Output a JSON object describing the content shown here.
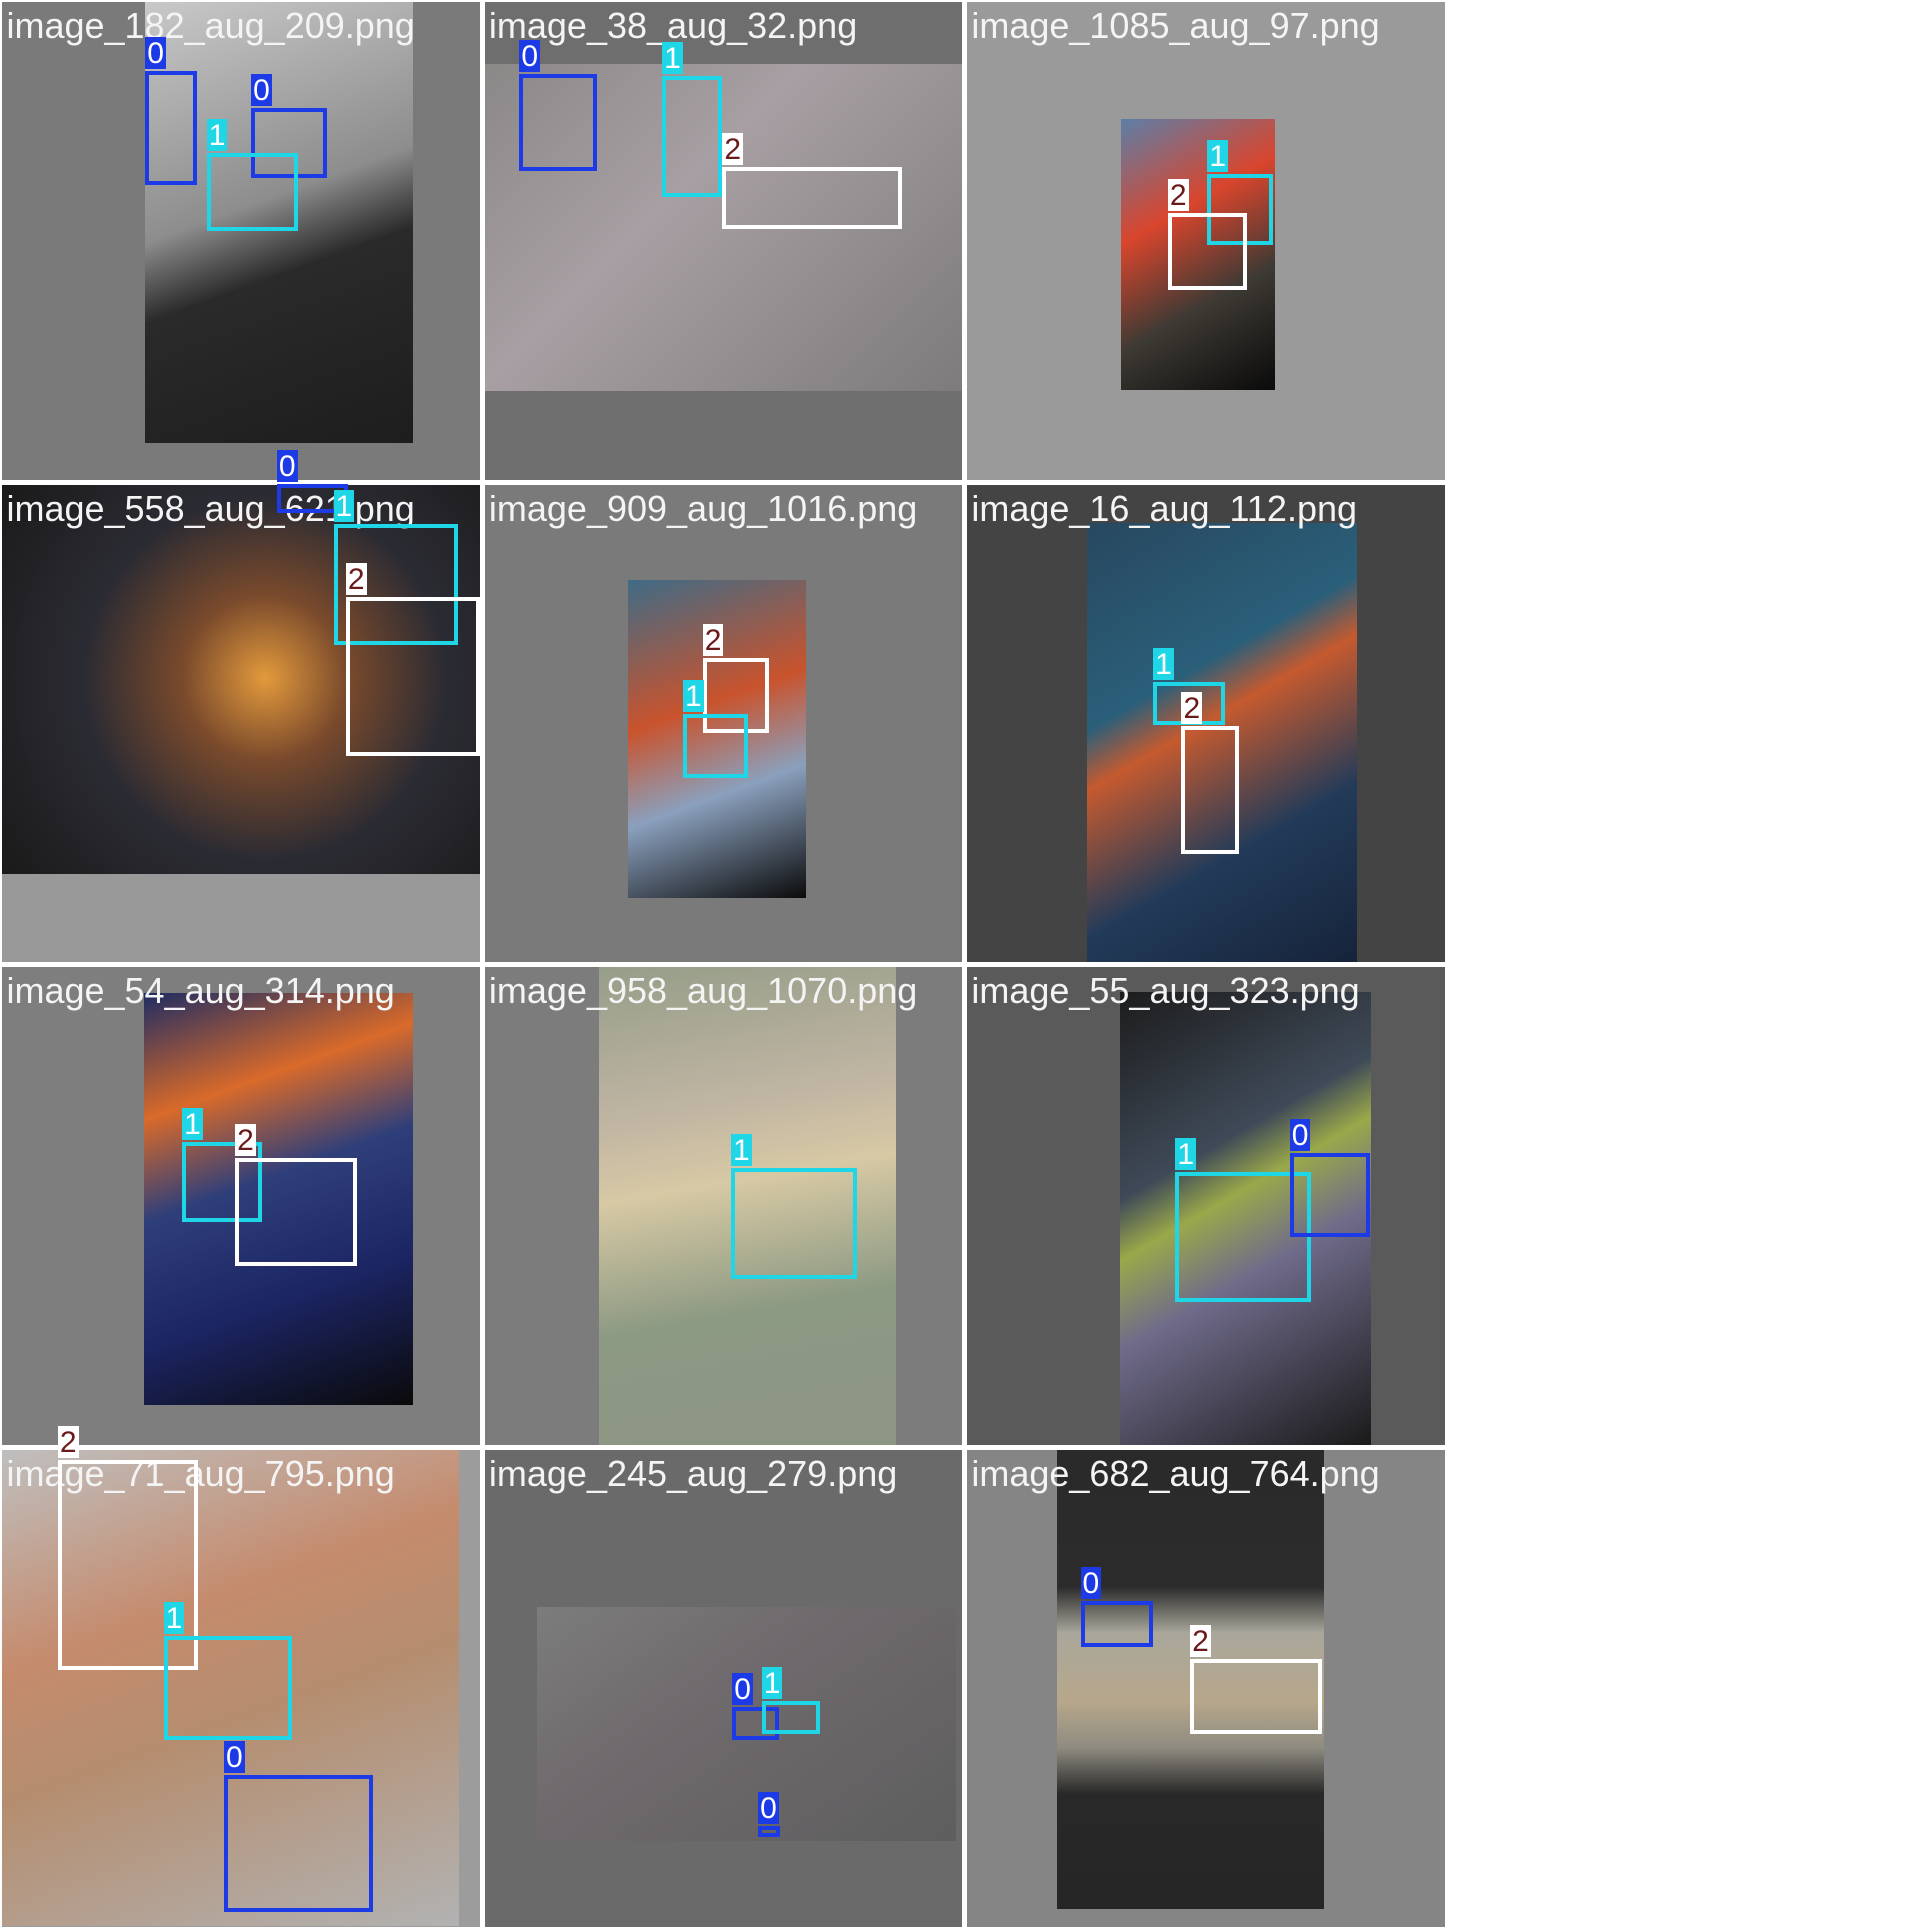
{
  "class_colors": {
    "0": "#1c3ae6",
    "1": "#1fd6e6",
    "2": "#ffffff"
  },
  "tag_text_colors": {
    "0": "#ffffff",
    "1": "#ffffff",
    "2": "#6b1a1a"
  },
  "tiles": [
    {
      "filename": "image_182_aug_209.png",
      "detections": [
        {
          "class": "0"
        },
        {
          "class": "0"
        },
        {
          "class": "1"
        }
      ]
    },
    {
      "filename": "image_38_aug_32.png",
      "detections": [
        {
          "class": "0"
        },
        {
          "class": "1"
        },
        {
          "class": "2"
        }
      ]
    },
    {
      "filename": "image_1085_aug_97.png",
      "detections": [
        {
          "class": "1"
        },
        {
          "class": "2"
        }
      ]
    },
    {
      "filename": "image_558_aug_621.png",
      "detections": [
        {
          "class": "0"
        },
        {
          "class": "1"
        },
        {
          "class": "2"
        }
      ]
    },
    {
      "filename": "image_909_aug_1016.png",
      "detections": [
        {
          "class": "2"
        },
        {
          "class": "1"
        }
      ]
    },
    {
      "filename": "image_16_aug_112.png",
      "detections": [
        {
          "class": "1"
        },
        {
          "class": "2"
        }
      ]
    },
    {
      "filename": "image_54_aug_314.png",
      "detections": [
        {
          "class": "1"
        },
        {
          "class": "2"
        }
      ]
    },
    {
      "filename": "image_958_aug_1070.png",
      "detections": [
        {
          "class": "1"
        }
      ]
    },
    {
      "filename": "image_55_aug_323.png",
      "detections": [
        {
          "class": "1"
        },
        {
          "class": "0"
        }
      ]
    },
    {
      "filename": "image_71_aug_795.png",
      "detections": [
        {
          "class": "2"
        },
        {
          "class": "1"
        },
        {
          "class": "0"
        }
      ]
    },
    {
      "filename": "image_245_aug_279.png",
      "detections": [
        {
          "class": "0"
        },
        {
          "class": "1"
        },
        {
          "class": "0"
        }
      ]
    },
    {
      "filename": "image_682_aug_764.png",
      "detections": [
        {
          "class": "0"
        },
        {
          "class": "2"
        }
      ]
    }
  ]
}
